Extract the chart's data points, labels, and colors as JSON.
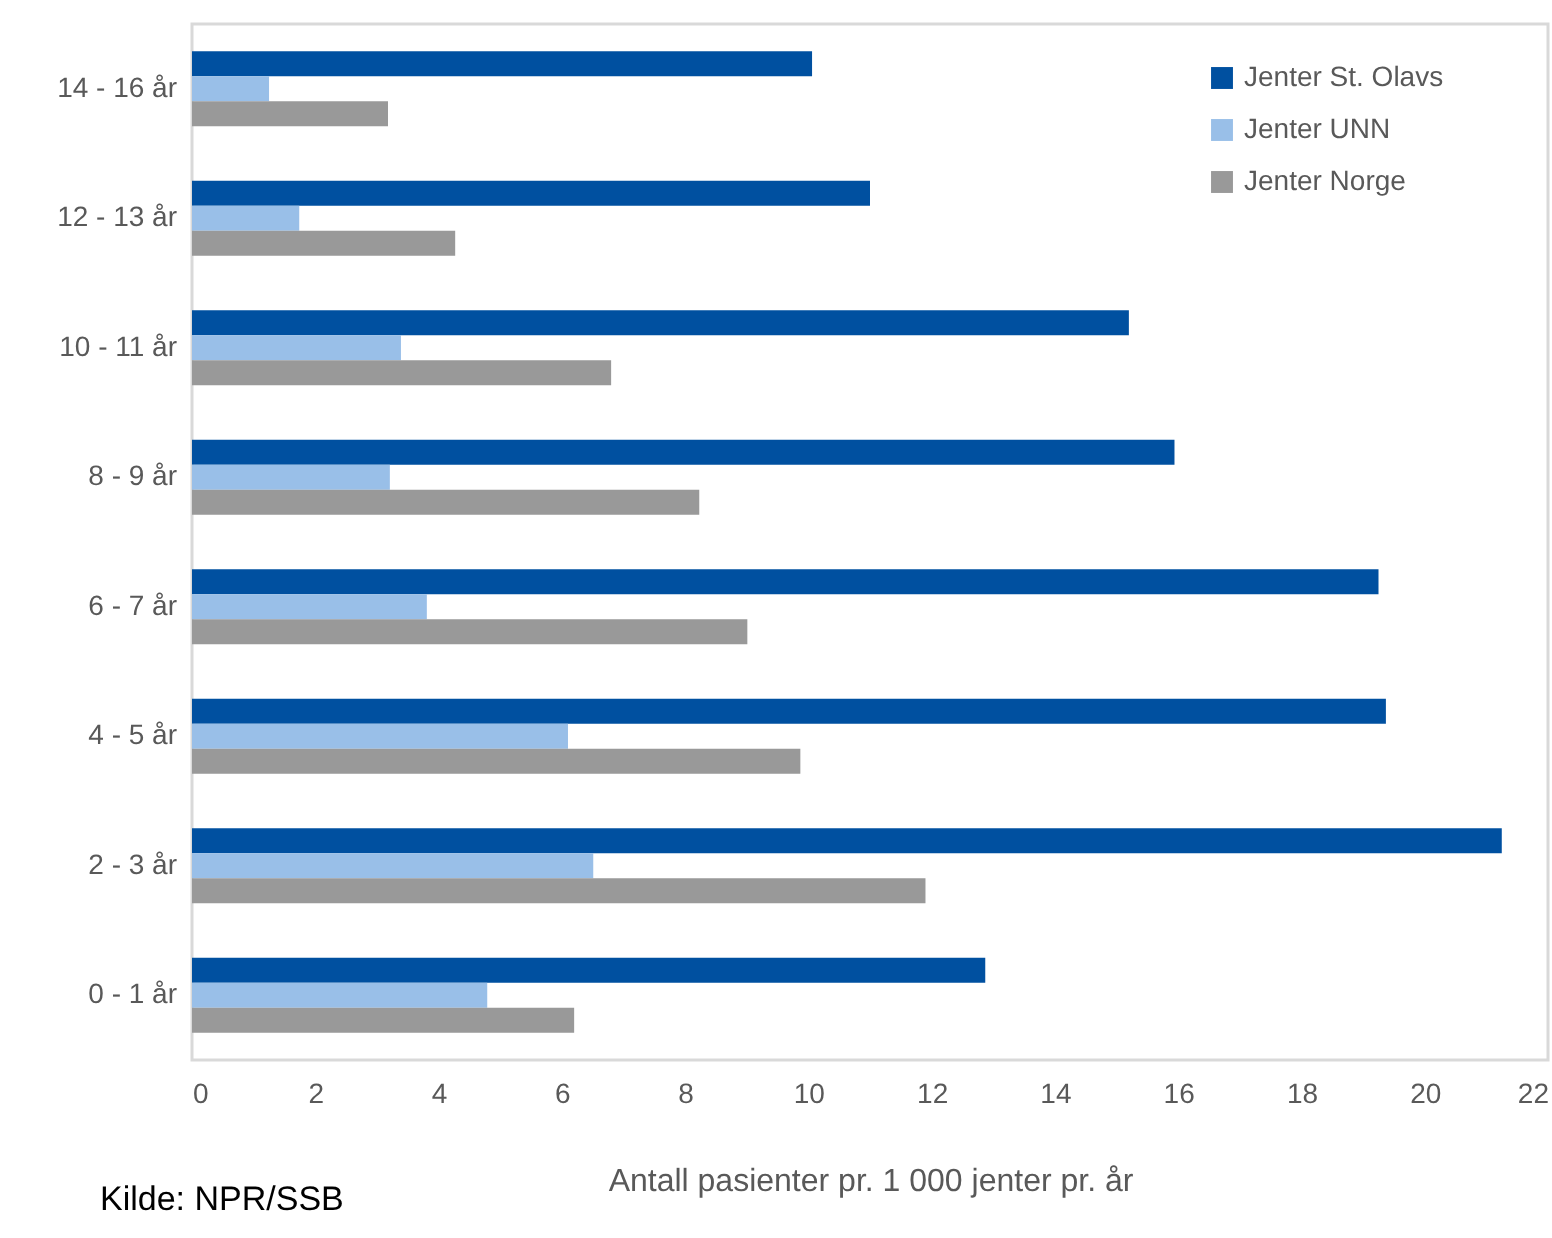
{
  "chart_data": {
    "type": "bar",
    "orientation": "horizontal",
    "categories": [
      "14 - 16 år",
      "12 - 13 år",
      "10 - 11 år",
      "8 - 9 år",
      "6 - 7 år",
      "4 - 5 år",
      "2 - 3 år",
      "0 - 1 år"
    ],
    "series": [
      {
        "name": "Jenter St. Olavs",
        "color": "#0050a0",
        "values": [
          10.06,
          11.0,
          15.2,
          15.94,
          19.25,
          19.37,
          21.25,
          12.87
        ]
      },
      {
        "name": "Jenter UNN",
        "color": "#99bfe8",
        "values": [
          1.25,
          1.74,
          3.39,
          3.21,
          3.81,
          6.1,
          6.51,
          4.79
        ]
      },
      {
        "name": "Jenter Norge",
        "color": "#999999",
        "values": [
          3.18,
          4.27,
          6.8,
          8.23,
          9.01,
          9.87,
          11.9,
          6.2
        ]
      }
    ],
    "xlim": [
      0,
      22
    ],
    "xticks": [
      0,
      2,
      4,
      6,
      8,
      10,
      12,
      14,
      16,
      18,
      20,
      22
    ],
    "grid": false,
    "legend": "top right",
    "xlabel": "Antall pasienter pr. 1 000 jenter pr. år",
    "annotations": [
      "Kilde: NPR/SSB"
    ]
  }
}
